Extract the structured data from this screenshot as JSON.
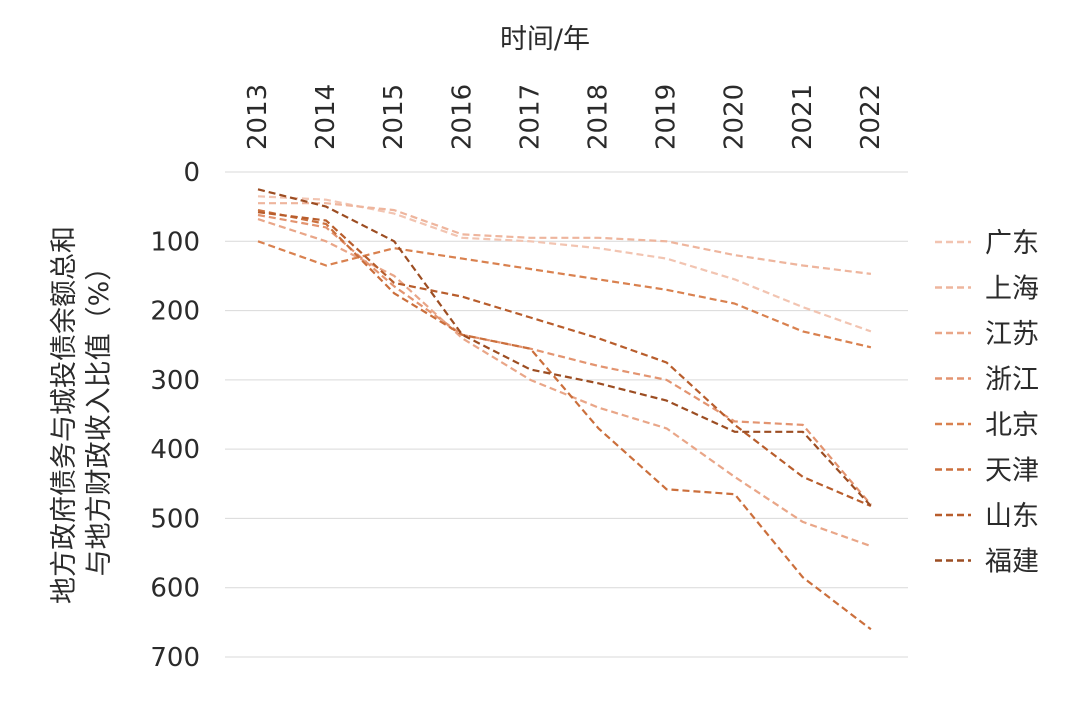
{
  "chart_data": {
    "type": "line",
    "xlabel": "时间/年",
    "ylabel_line1": "地方政府债务与城投债余额总和",
    "ylabel_line2": "与地方财政收入比值（%）",
    "x": [
      "2013",
      "2014",
      "2015",
      "2016",
      "2017",
      "2018",
      "2019",
      "2020",
      "2021",
      "2022"
    ],
    "y_ticks": [
      "0",
      "100",
      "200",
      "300",
      "400",
      "500",
      "600",
      "700"
    ],
    "ylim": [
      0,
      700
    ],
    "y_axis_inverted": true,
    "x_axis_position": "top",
    "grid": "horizontal",
    "legend_position": "right",
    "series": [
      {
        "name": "广东",
        "color": "#f2c4b1",
        "values": [
          35,
          40,
          60,
          95,
          100,
          110,
          125,
          155,
          195,
          230
        ]
      },
      {
        "name": "上海",
        "color": "#eeb59d",
        "values": [
          45,
          45,
          55,
          90,
          95,
          95,
          100,
          120,
          135,
          147
        ]
      },
      {
        "name": "江苏",
        "color": "#e9a688",
        "values": [
          68,
          100,
          150,
          240,
          300,
          340,
          370,
          440,
          505,
          540
        ]
      },
      {
        "name": "浙江",
        "color": "#e39470",
        "values": [
          62,
          80,
          165,
          235,
          255,
          280,
          300,
          360,
          365,
          480
        ]
      },
      {
        "name": "北京",
        "color": "#d9814f",
        "values": [
          100,
          135,
          110,
          125,
          140,
          155,
          170,
          190,
          230,
          253
        ]
      },
      {
        "name": "天津",
        "color": "#cb6f3c",
        "values": [
          55,
          75,
          175,
          235,
          255,
          370,
          458,
          465,
          585,
          660
        ]
      },
      {
        "name": "山东",
        "color": "#b85d2c",
        "values": [
          58,
          70,
          160,
          180,
          210,
          240,
          275,
          365,
          440,
          482
        ]
      },
      {
        "name": "福建",
        "color": "#9c4d22",
        "values": [
          25,
          50,
          100,
          235,
          285,
          305,
          330,
          375,
          375,
          482
        ]
      }
    ]
  }
}
